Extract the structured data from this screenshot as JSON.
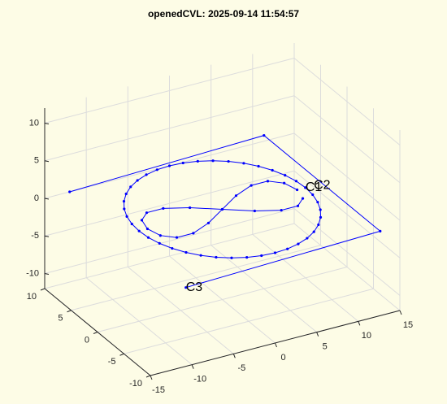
{
  "chart_data": {
    "type": "line3d",
    "title": "openedCVL: 2025-09-14 11:54:57",
    "xlim": [
      -15,
      15
    ],
    "ylim": [
      -10,
      10
    ],
    "zlim": [
      -12,
      12
    ],
    "xticks": [
      -15,
      -10,
      -5,
      0,
      5,
      10,
      15
    ],
    "yticks": [
      -10,
      -5,
      0,
      5,
      10
    ],
    "zticks": [
      -10,
      -5,
      0,
      5,
      10
    ],
    "grid": true,
    "series": [
      {
        "color": "#0000ff",
        "marker": ".",
        "x": [
          10,
          9.88,
          9.51,
          8.91,
          8.09,
          7.07,
          5.88,
          4.54,
          3.09,
          1.56,
          0,
          -1.56,
          -3.09,
          -4.54,
          -5.88,
          -7.07,
          -8.09,
          -8.91,
          -9.51,
          -9.88,
          -10,
          -9.88,
          -9.51,
          -8.91,
          -8.09,
          -7.07,
          -5.88,
          -4.54,
          -3.09,
          -1.56,
          0,
          1.56,
          3.09,
          4.54,
          5.88,
          7.07,
          8.09,
          8.91,
          9.51,
          9.88,
          10
        ],
        "y": [
          0,
          1.56,
          3.09,
          4.54,
          5.88,
          7.07,
          8.09,
          8.91,
          9.51,
          9.88,
          10,
          9.88,
          9.51,
          8.91,
          8.09,
          7.07,
          5.88,
          4.54,
          3.09,
          1.56,
          0,
          -1.56,
          -3.09,
          -4.54,
          -5.88,
          -7.07,
          -8.09,
          -8.91,
          -9.51,
          -9.88,
          -10,
          -9.88,
          -9.51,
          -8.91,
          -8.09,
          -7.07,
          -5.88,
          -4.54,
          -3.09,
          -1.56,
          0
        ],
        "z": [
          0,
          0,
          0,
          0,
          0,
          0,
          0,
          0,
          0,
          0,
          0,
          0,
          0,
          0,
          0,
          0,
          0,
          0,
          0,
          0,
          0,
          0,
          0,
          0,
          0,
          0,
          0,
          0,
          0,
          0,
          0,
          0,
          0,
          0,
          0,
          0,
          0,
          0,
          0,
          0,
          0
        ]
      },
      {
        "color": "#0000ff",
        "marker": ".",
        "x": [
          9,
          8.56,
          7.28,
          5.29,
          2.78,
          0,
          -2.78,
          -5.29,
          -7.28,
          -8.56,
          -9,
          -8.56,
          -7.28,
          -5.29,
          -2.78,
          0,
          2.78,
          5.29,
          7.28,
          8.56
        ],
        "y": [
          0,
          1.76,
          2.85,
          2.85,
          1.76,
          0,
          -1.76,
          -2.85,
          -2.85,
          -1.76,
          0,
          1.76,
          2.85,
          2.85,
          1.76,
          0,
          -1.76,
          -2.85,
          -2.85,
          -1.76
        ],
        "z": [
          0,
          0,
          0,
          0,
          0,
          0,
          0,
          0,
          0,
          0,
          0,
          0,
          0,
          0,
          0,
          0,
          0,
          0,
          0,
          0
        ]
      },
      {
        "color": "#0000ff",
        "marker": ".",
        "x": [
          -12,
          12,
          12,
          -12
        ],
        "y": [
          10,
          11,
          -11,
          -12
        ],
        "z": [
          0,
          0,
          0,
          0
        ]
      }
    ],
    "annotations": [
      {
        "text": "C1",
        "x": 10,
        "y": 0,
        "z": 0
      },
      {
        "text": "C2",
        "x": 11,
        "y": 0,
        "z": 0
      },
      {
        "text": "C3",
        "x": -12,
        "y": -12,
        "z": 0
      }
    ]
  }
}
